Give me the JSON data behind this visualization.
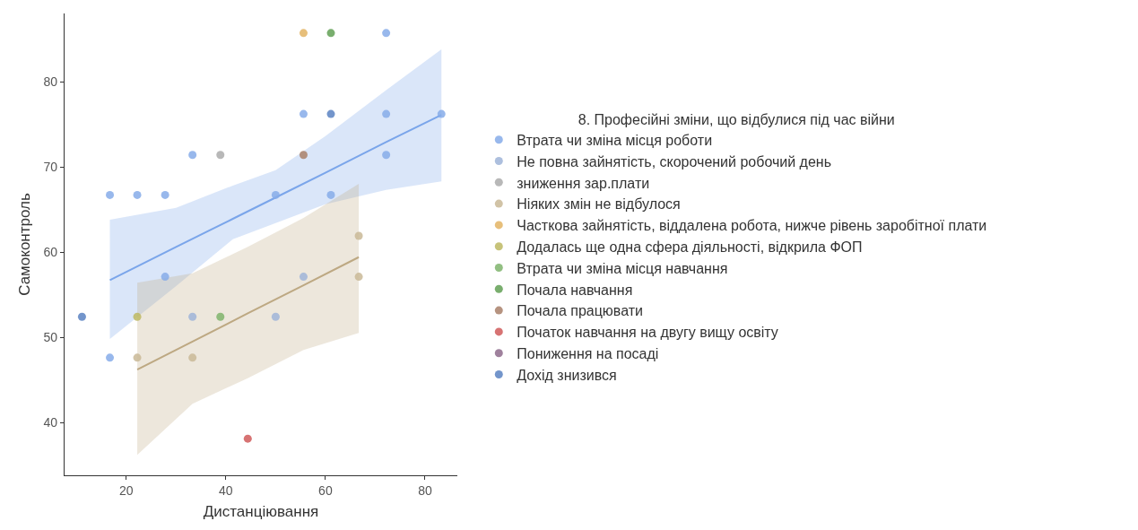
{
  "chart_data": {
    "type": "scatter",
    "xlabel": "Дистанціювання",
    "ylabel": "Самоконтроль",
    "legend_title": "8. Професійні зміни, що відбулися під час війни",
    "legend": "right",
    "marker": "circle",
    "grid": false,
    "xlim": [
      7.6,
      86.5
    ],
    "ylim": [
      33.8,
      88
    ],
    "xticks": [
      20,
      40,
      60,
      80
    ],
    "yticks": [
      40,
      50,
      60,
      70,
      80
    ],
    "series": [
      {
        "name": "Втрата чи зміна місця роботи",
        "color": "#86abe9",
        "x": [
          16.7,
          22.2,
          27.8,
          33.3,
          16.7,
          27.8,
          55.6,
          72.2,
          72.2,
          83.3,
          72.2,
          61.1,
          50
        ],
        "values": [
          66.7,
          66.7,
          66.7,
          71.4,
          47.6,
          57.1,
          76.2,
          85.7,
          76.2,
          76.2,
          71.4,
          66.7,
          66.7
        ]
      },
      {
        "name": "Не повна зайнятість, скорочений робочий день",
        "color": "#9fb4d8",
        "x": [
          33.3,
          50,
          55.6
        ],
        "values": [
          52.4,
          52.4,
          57.1
        ]
      },
      {
        "name": "зниження зар.плати",
        "color": "#ababab",
        "x": [
          38.9
        ],
        "values": [
          71.4
        ]
      },
      {
        "name": "Ніяких змін не відбулося",
        "color": "#c9b897",
        "x": [
          22.2,
          33.3,
          66.7,
          66.7
        ],
        "values": [
          47.6,
          47.6,
          57.1,
          61.9
        ]
      },
      {
        "name": "Часткова зайнятість, віддалена робота, нижче рівень заробітної плати",
        "color": "#e3b464",
        "x": [
          55.6
        ],
        "values": [
          85.7
        ]
      },
      {
        "name": "Додалась ще одна сфера діяльності, відкрила ФОП",
        "color": "#bdb863",
        "x": [
          22.2
        ],
        "values": [
          52.4
        ]
      },
      {
        "name": "Втрата чи зміна місця навчання",
        "color": "#7fb46c",
        "x": [
          38.9
        ],
        "values": [
          52.4
        ]
      },
      {
        "name": "Почала навчання",
        "color": "#62a055",
        "x": [
          61.1
        ],
        "values": [
          85.7
        ]
      },
      {
        "name": "Почала працювати",
        "color": "#a9806a",
        "x": [
          55.6
        ],
        "values": [
          71.4
        ]
      },
      {
        "name": "Початок навчання на двугу вищу освіту",
        "color": "#d05a5a",
        "x": [
          44.4
        ],
        "values": [
          38.1
        ]
      },
      {
        "name": "Пониження на посаді",
        "color": "#8e6b8c",
        "x": [
          null
        ],
        "values": [
          null
        ]
      },
      {
        "name": "Дохід знизився",
        "color": "#5b82c2",
        "x": [
          11.1,
          61.1
        ],
        "values": [
          52.4,
          76.2
        ]
      },
      {
        "type": "line",
        "marker": "none",
        "color": "#7aa5ea",
        "x": [
          16.7,
          30,
          41.4,
          50,
          60,
          72.2,
          83.3
        ],
        "values": [
          56.7,
          60.6,
          63.9,
          66.4,
          69.3,
          72.9,
          76.1
        ],
        "lower": [
          49.8,
          56,
          61.5,
          63.4,
          65.6,
          67.3,
          68.3
        ],
        "upper": [
          63.8,
          65.2,
          67.8,
          69.6,
          73.6,
          79,
          83.8
        ]
      },
      {
        "type": "line",
        "marker": "none",
        "color": "#bda882",
        "x": [
          22.2,
          33.3,
          44.4,
          55.6,
          66.7
        ],
        "values": [
          46.2,
          49.5,
          52.8,
          56.1,
          59.4
        ],
        "lower": [
          36.2,
          42.2,
          45.2,
          48.5,
          50.5
        ],
        "upper": [
          56.4,
          57.5,
          60.6,
          64,
          68
        ]
      }
    ]
  }
}
